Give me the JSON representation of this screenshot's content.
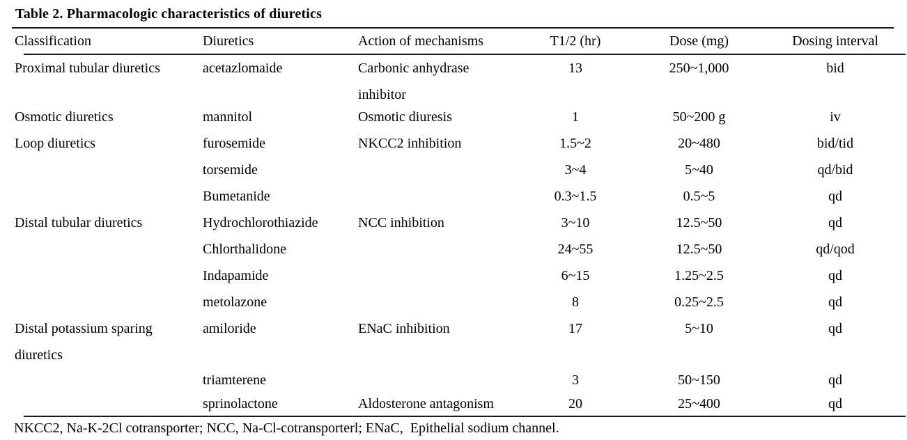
{
  "title": "Table 2. Pharmacologic characteristics of diuretics",
  "table": {
    "headers": {
      "classification": "Classification",
      "diuretic": "Diuretics",
      "action": "Action of mechanisms",
      "half_life": "T1/2 (hr)",
      "dose": "Dose (mg)",
      "interval": "Dosing interval"
    },
    "rows": [
      {
        "classification": "Proximal tubular diuretics",
        "diuretic": "acetazlomaide",
        "action": [
          "Carbonic anhydrase",
          "inhibitor"
        ],
        "half_life": "13",
        "dose": "250~1,000",
        "interval": "bid"
      },
      {
        "classification": "Osmotic diuretics",
        "diuretic": "mannitol",
        "action": "Osmotic diuresis",
        "half_life": "1",
        "dose": "50~200 g",
        "interval": "iv"
      },
      {
        "classification": "Loop diuretics",
        "diuretic": "furosemide",
        "action": "NKCC2 inhibition",
        "half_life": "1.5~2",
        "dose": "20~480",
        "interval": "bid/tid"
      },
      {
        "classification": "",
        "diuretic": "torsemide",
        "action": "",
        "half_life": "3~4",
        "dose": "5~40",
        "interval": "qd/bid"
      },
      {
        "classification": "",
        "diuretic": "Bumetanide",
        "action": "",
        "half_life": "0.3~1.5",
        "dose": "0.5~5",
        "interval": "qd"
      },
      {
        "classification": "Distal tubular diuretics",
        "diuretic": "Hydrochlorothiazide",
        "action": "NCC inhibition",
        "half_life": "3~10",
        "dose": "12.5~50",
        "interval": "qd"
      },
      {
        "classification": "",
        "diuretic": "Chlorthalidone",
        "action": "",
        "half_life": "24~55",
        "dose": "12.5~50",
        "interval": "qd/qod"
      },
      {
        "classification": "",
        "diuretic": "Indapamide",
        "action": "",
        "half_life": "6~15",
        "dose": "1.25~2.5",
        "interval": "qd"
      },
      {
        "classification": "",
        "diuretic": "metolazone",
        "action": "",
        "half_life": "8",
        "dose": "0.25~2.5",
        "interval": "qd"
      },
      {
        "classification": [
          "Distal potassium sparing",
          "diuretics"
        ],
        "diuretic": "amiloride",
        "action": "ENaC inhibition",
        "half_life": "17",
        "dose": "5~10",
        "interval": "qd"
      },
      {
        "classification": "",
        "diuretic": "triamterene",
        "action": "",
        "half_life": "3",
        "dose": "50~150",
        "interval": "qd"
      },
      {
        "classification": "",
        "diuretic": "sprinolactone",
        "action": "Aldosterone antagonism",
        "half_life": "20",
        "dose": "25~400",
        "interval": "qd"
      }
    ]
  },
  "footnote": "NKCC2, Na-K-2Cl cotransporter; NCC, Na-Cl-cotransporterl; ENaC,  Epithelial sodium channel."
}
